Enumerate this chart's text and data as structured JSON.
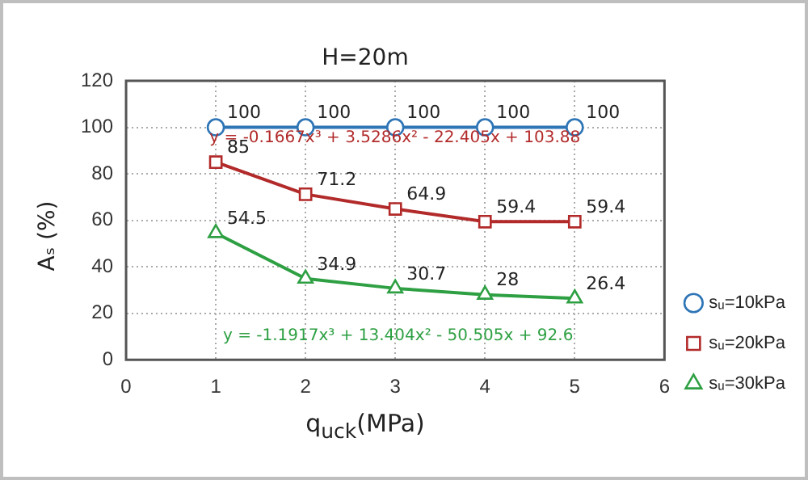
{
  "chart_data": {
    "type": "line",
    "title": "H=20m",
    "xlabel": "q$_{uck}$(MPa)",
    "ylabel": "Aₛ (%)",
    "x": [
      1,
      2,
      3,
      4,
      5
    ],
    "series": [
      {
        "name": "sᵤ=10kPa",
        "color": "#2e75b6",
        "marker": "circle",
        "values": [
          100,
          100,
          100,
          100,
          100
        ]
      },
      {
        "name": "sᵤ=20kPa",
        "color": "#b22a2a",
        "marker": "square",
        "values": [
          85,
          71.2,
          64.9,
          59.4,
          59.4
        ]
      },
      {
        "name": "sᵤ=30kPa",
        "color": "#2ea043",
        "marker": "triangle",
        "values": [
          54.5,
          34.9,
          30.7,
          28,
          26.4
        ]
      }
    ],
    "annotations": [
      "y = -0.1667x³ + 3.5286x² - 22.405x + 103.88",
      "y = -1.1917x³ + 13.404x² - 50.505x + 92.6"
    ],
    "xlim": [
      0,
      6
    ],
    "xticks": [
      0,
      1,
      2,
      3,
      4,
      5,
      6
    ],
    "ylim": [
      0,
      120
    ],
    "yticks": [
      0,
      20,
      40,
      60,
      80,
      100,
      120
    ],
    "grid": true,
    "legend": "right",
    "data_labels": true,
    "line_style": "solid"
  }
}
